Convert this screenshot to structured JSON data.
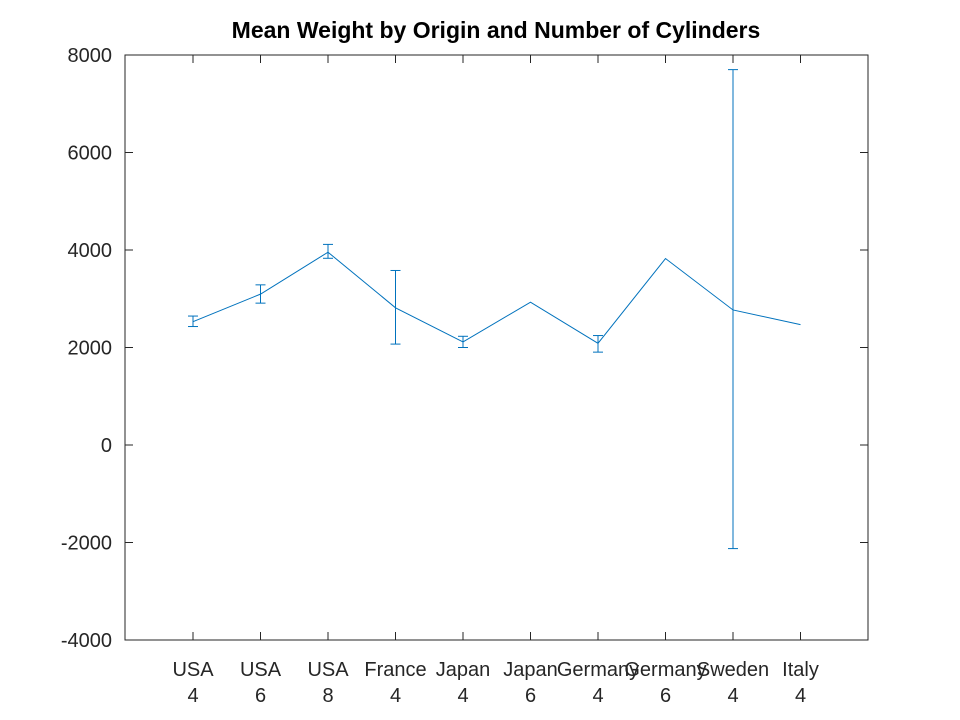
{
  "chart_data": {
    "type": "line",
    "title": "Mean Weight by Origin and Number of Cylinders",
    "xlabel": "",
    "ylabel": "",
    "categories": [
      [
        "USA",
        "4"
      ],
      [
        "USA",
        "6"
      ],
      [
        "USA",
        "8"
      ],
      [
        "France",
        "4"
      ],
      [
        "Japan",
        "4"
      ],
      [
        "Japan",
        "6"
      ],
      [
        "Germany",
        "4"
      ],
      [
        "Germany",
        "6"
      ],
      [
        "Sweden",
        "4"
      ],
      [
        "Italy",
        "4"
      ]
    ],
    "series": [
      {
        "values": [
          2530,
          3095,
          3955,
          2815,
          2115,
          2930,
          2085,
          3825,
          2770,
          2470
        ],
        "error_low": [
          2430,
          2910,
          3830,
          2070,
          2000,
          2930,
          1905,
          3825,
          -2125,
          2470
        ],
        "error_high": [
          2645,
          3285,
          4115,
          3580,
          2230,
          2930,
          2245,
          3825,
          7700,
          2470
        ]
      }
    ],
    "ylim": [
      -4000,
      8000
    ],
    "yticks": [
      -4000,
      -2000,
      0,
      2000,
      4000,
      6000,
      8000
    ],
    "grid": false,
    "legend": "none",
    "colors": {
      "series": "#0072bd",
      "axis": "#262626",
      "background": "#ffffff"
    }
  }
}
